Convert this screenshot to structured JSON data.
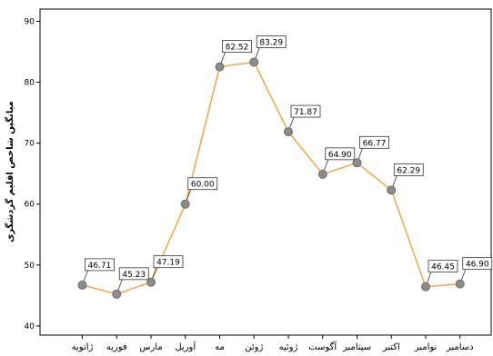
{
  "chart_data": {
    "type": "line",
    "categories": [
      "ژانویه",
      "فوریه",
      "مارس",
      "آوریل",
      "مه",
      "ژوئن",
      "ژوئیه",
      "آگوست",
      "سپتامبر",
      "اکتبر",
      "نوامبر",
      "دسامبر"
    ],
    "series": [
      {
        "values": [
          46.71,
          45.23,
          47.19,
          60.0,
          82.52,
          83.29,
          71.87,
          64.9,
          66.77,
          62.29,
          46.45,
          46.9
        ],
        "labels": [
          "46.71",
          "45.23",
          "47.19",
          "60.00",
          "82.52",
          "83.29",
          "71.87",
          "64.90",
          "66.77",
          "62.29",
          "46.45",
          "46.90"
        ]
      }
    ],
    "ylabel": "میانگین شاخص اقلیم گردشگری",
    "xlabel": "",
    "ylim": [
      38.5,
      92
    ],
    "yticks": [
      40,
      50,
      60,
      70,
      80,
      90
    ],
    "ytick_labels": [
      "40",
      "50",
      "60",
      "70",
      "80",
      "90"
    ],
    "grid": false,
    "legend": "none",
    "colors": {
      "line": "#f5a640",
      "marker": "#8c8c8c",
      "marker_stroke": "#6e6e6e",
      "axis": "#000000"
    }
  }
}
